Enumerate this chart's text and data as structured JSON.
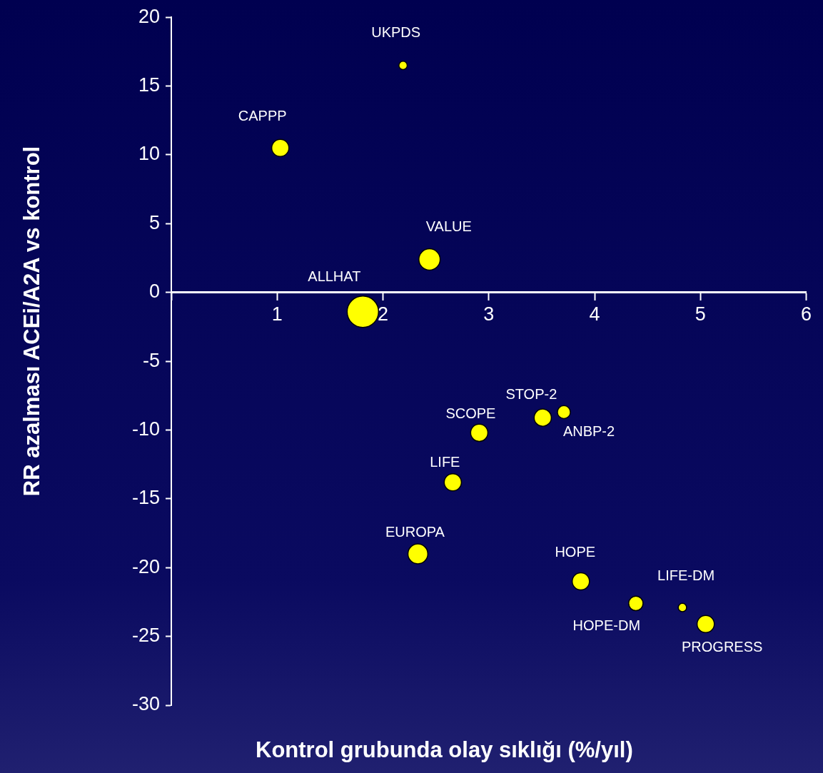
{
  "chart_data": {
    "type": "bubble",
    "xlabel": "Kontrol grubunda olay sıklığı (%/yıl)",
    "ylabel": "RR azalması ACEi/A2A vs kontrol",
    "x": [
      2.19,
      1.03,
      2.44,
      1.81,
      2.91,
      3.51,
      3.71,
      2.66,
      2.33,
      3.87,
      4.39,
      4.83,
      5.05
    ],
    "values": [
      16.5,
      10.5,
      2.4,
      -1.4,
      -10.2,
      -9.1,
      -8.7,
      -13.8,
      -19.0,
      -21.0,
      -22.6,
      -22.9,
      -24.1
    ],
    "sizes": [
      0.07,
      0.3,
      0.46,
      1,
      0.3,
      0.3,
      0.17,
      0.3,
      0.4,
      0.3,
      0.21,
      0.07,
      0.3
    ],
    "color": "#ffff00",
    "xlim": [
      0,
      6
    ],
    "xticks": [
      {
        "value": 0,
        "label": null
      },
      1,
      2,
      3,
      4,
      5,
      6
    ],
    "ylim": [
      -30,
      20
    ],
    "yticks": [
      -30,
      -25,
      -20,
      -15,
      -10,
      -5,
      0,
      5,
      10,
      15,
      20
    ],
    "grid": false,
    "legend": false,
    "annotations": [
      {
        "text": "UKPDS",
        "x": 2.19,
        "y": 16.5
      },
      {
        "text": "CAPPP",
        "x": 1.03,
        "y": 10.5
      },
      {
        "text": "VALUE",
        "x": 2.44,
        "y": 2.4
      },
      {
        "text": "ALLHAT",
        "x": 1.81,
        "y": -1.4
      },
      {
        "text": "SCOPE",
        "x": 2.91,
        "y": -10.2
      },
      {
        "text": "STOP-2",
        "x": 3.51,
        "y": -9.1
      },
      {
        "text": "ANBP-2",
        "x": 3.71,
        "y": -8.7
      },
      {
        "text": "LIFE",
        "x": 2.66,
        "y": -13.8
      },
      {
        "text": "EUROPA",
        "x": 2.33,
        "y": -19.0
      },
      {
        "text": "HOPE",
        "x": 3.87,
        "y": -21.0
      },
      {
        "text": "HOPE-DM",
        "x": 4.39,
        "y": -22.6
      },
      {
        "text": "LIFE-DM",
        "x": 4.83,
        "y": -22.9
      },
      {
        "text": "PROGRESS",
        "x": 5.05,
        "y": -24.1
      }
    ]
  }
}
